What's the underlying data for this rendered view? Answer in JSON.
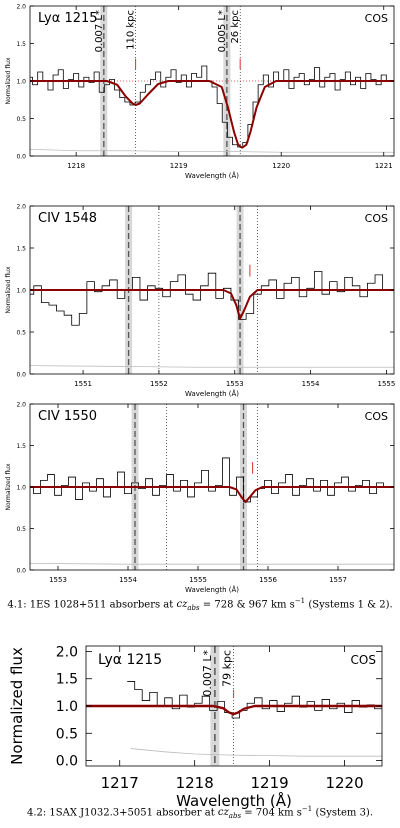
{
  "figure": {
    "caption_1": {
      "prefix": "4.1: 1ES 1028+511 absorbers at",
      "value": "= 728 & 967 km s",
      "suffix": "(Systems 1 & 2)."
    },
    "caption_2": {
      "prefix": "4.2: 1SAX J1032.3+5051 absorber at",
      "value": "= 704 km s",
      "suffix": "(System 3)."
    }
  },
  "chart_data": [
    {
      "type": "line",
      "title": "Lyα 1215",
      "instrument": "COS",
      "xlabel": "Wavelength (Å)",
      "ylabel": "Normalized flux",
      "xlim": [
        1217.55,
        1221.1
      ],
      "ylim": [
        0.0,
        2.0
      ],
      "xticks": [
        "1218",
        "1219",
        "1220",
        "1221"
      ],
      "xtickvals": [
        1218,
        1219,
        1220,
        1221
      ],
      "yticks": [
        "0.0",
        "0.5",
        "1.0",
        "1.5",
        "2.0"
      ],
      "ytickvals": [
        0.0,
        0.5,
        1.0,
        1.5,
        2.0
      ],
      "colors": {
        "model": "#8b0000",
        "data": "#000000",
        "error": "#bbbbbb",
        "band": "#d8d8d8",
        "tick": "#dd3333"
      },
      "markers": [
        {
          "x": 1218.27,
          "label": "0.007 L*"
        },
        {
          "x": 1219.47,
          "label": "0.005 L*"
        }
      ],
      "dotted_lines": [
        1218.58,
        1219.6
      ],
      "marker_labels": [
        "110 kpc",
        "26 kpc"
      ],
      "red_ticks": [
        1218.58,
        1219.6
      ],
      "continuum_dotted": true,
      "series": [
        {
          "role": "data",
          "x": [
            1217.55,
            1217.6,
            1217.65,
            1217.7,
            1217.75,
            1217.8,
            1217.85,
            1217.9,
            1217.95,
            1218.0,
            1218.05,
            1218.1,
            1218.15,
            1218.2,
            1218.25,
            1218.3,
            1218.35,
            1218.4,
            1218.45,
            1218.5,
            1218.55,
            1218.6,
            1218.65,
            1218.7,
            1218.75,
            1218.8,
            1218.85,
            1218.9,
            1218.95,
            1219.0,
            1219.05,
            1219.1,
            1219.15,
            1219.2,
            1219.25,
            1219.3,
            1219.35,
            1219.4,
            1219.45,
            1219.5,
            1219.55,
            1219.6,
            1219.65,
            1219.7,
            1219.75,
            1219.8,
            1219.85,
            1219.9,
            1219.95,
            1220.0,
            1220.05,
            1220.1,
            1220.15,
            1220.2,
            1220.25,
            1220.3,
            1220.35,
            1220.4,
            1220.45,
            1220.5,
            1220.55,
            1220.6,
            1220.65,
            1220.7,
            1220.75,
            1220.8,
            1220.85,
            1220.9,
            1220.95,
            1221.0,
            1221.05
          ],
          "y": [
            1.05,
            0.95,
            1.12,
            1.0,
            0.88,
            1.08,
            1.15,
            0.9,
            1.02,
            1.1,
            0.92,
            1.05,
            0.98,
            1.12,
            0.85,
            0.95,
            1.02,
            0.88,
            0.78,
            0.72,
            0.68,
            0.72,
            0.85,
            0.95,
            1.02,
            1.12,
            0.92,
            1.05,
            1.15,
            0.98,
            1.08,
            0.92,
            1.1,
            1.05,
            1.2,
            1.0,
            0.92,
            0.7,
            0.45,
            0.25,
            0.15,
            0.12,
            0.18,
            0.42,
            0.72,
            0.95,
            1.08,
            0.92,
            1.12,
            1.0,
            1.15,
            0.9,
            1.05,
            1.1,
            0.95,
            1.02,
            1.18,
            0.92,
            1.05,
            1.1,
            0.88,
            1.02,
            1.12,
            0.95,
            1.05,
            0.9,
            1.1,
            1.02,
            0.95,
            1.08,
            1.0
          ]
        },
        {
          "role": "model",
          "x": [
            1217.55,
            1218.3,
            1218.4,
            1218.48,
            1218.55,
            1218.58,
            1218.62,
            1218.7,
            1218.8,
            1218.9,
            1219.3,
            1219.42,
            1219.48,
            1219.54,
            1219.58,
            1219.62,
            1219.66,
            1219.7,
            1219.76,
            1219.84,
            1219.95,
            1221.1
          ],
          "y": [
            1.0,
            1.0,
            0.95,
            0.8,
            0.7,
            0.68,
            0.7,
            0.82,
            0.96,
            1.0,
            1.0,
            0.92,
            0.65,
            0.32,
            0.15,
            0.11,
            0.15,
            0.32,
            0.65,
            0.92,
            1.0,
            1.0
          ]
        },
        {
          "role": "error",
          "x": [
            1217.55,
            1218.0,
            1218.5,
            1219.0,
            1219.5,
            1220.0,
            1220.5,
            1221.1
          ],
          "y": [
            0.09,
            0.07,
            0.07,
            0.06,
            0.06,
            0.05,
            0.05,
            0.05
          ]
        }
      ]
    },
    {
      "type": "line",
      "title": "CIV 1548",
      "instrument": "COS",
      "xlabel": "Wavelength (Å)",
      "ylabel": "Normalized flux",
      "xlim": [
        1550.3,
        1555.1
      ],
      "ylim": [
        0.0,
        2.0
      ],
      "xticks": [
        "1551",
        "1552",
        "1553",
        "1554",
        "1555"
      ],
      "xtickvals": [
        1551,
        1552,
        1553,
        1554,
        1555
      ],
      "yticks": [
        "0.0",
        "0.5",
        "1.0",
        "1.5",
        "2.0"
      ],
      "ytickvals": [
        0.0,
        0.5,
        1.0,
        1.5,
        2.0
      ],
      "colors": {
        "model": "#8b0000",
        "data": "#000000",
        "error": "#bbbbbb",
        "band": "#d8d8d8",
        "tick": "#dd3333"
      },
      "markers": [
        {
          "x": 1551.6,
          "label": ""
        },
        {
          "x": 1553.07,
          "label": ""
        }
      ],
      "dotted_lines": [
        1552.0,
        1553.3
      ],
      "marker_labels": [],
      "red_ticks": [
        1553.2
      ],
      "continuum_dotted": false,
      "series": [
        {
          "role": "data",
          "x": [
            1550.3,
            1550.4,
            1550.5,
            1550.6,
            1550.7,
            1550.8,
            1550.9,
            1551.0,
            1551.1,
            1551.2,
            1551.3,
            1551.4,
            1551.5,
            1551.6,
            1551.7,
            1551.8,
            1551.9,
            1552.0,
            1552.1,
            1552.2,
            1552.3,
            1552.4,
            1552.5,
            1552.6,
            1552.7,
            1552.8,
            1552.9,
            1553.0,
            1553.1,
            1553.2,
            1553.3,
            1553.4,
            1553.5,
            1553.6,
            1553.7,
            1553.8,
            1553.9,
            1554.0,
            1554.1,
            1554.2,
            1554.3,
            1554.4,
            1554.5,
            1554.6,
            1554.7,
            1554.8,
            1554.9,
            1555.0
          ],
          "y": [
            0.95,
            1.05,
            0.85,
            0.82,
            0.75,
            0.7,
            0.58,
            0.72,
            1.1,
            0.98,
            1.05,
            1.12,
            0.9,
            1.0,
            1.15,
            0.88,
            1.05,
            1.02,
            0.92,
            1.1,
            1.18,
            0.95,
            0.88,
            1.05,
            1.2,
            0.9,
            1.02,
            0.88,
            0.65,
            0.72,
            0.95,
            1.05,
            1.12,
            0.9,
            1.08,
            1.15,
            0.92,
            1.02,
            1.22,
            0.95,
            1.1,
            0.98,
            1.15,
            1.05,
            0.92,
            1.08,
            1.18,
            1.0
          ]
        },
        {
          "role": "model",
          "x": [
            1550.3,
            1552.85,
            1552.95,
            1553.02,
            1553.07,
            1553.12,
            1553.2,
            1553.3,
            1555.1
          ],
          "y": [
            1.0,
            1.0,
            0.96,
            0.82,
            0.66,
            0.75,
            0.92,
            1.0,
            1.0
          ]
        },
        {
          "role": "error",
          "x": [
            1550.3,
            1551.5,
            1552.5,
            1553.5,
            1554.5,
            1555.1
          ],
          "y": [
            0.1,
            0.09,
            0.08,
            0.08,
            0.08,
            0.08
          ]
        }
      ]
    },
    {
      "type": "line",
      "title": "CIV 1550",
      "instrument": "COS",
      "xlabel": "Wavelength (Å)",
      "ylabel": "Normalized flux",
      "xlim": [
        1552.6,
        1557.8
      ],
      "ylim": [
        0.0,
        2.0
      ],
      "xticks": [
        "1553",
        "1554",
        "1555",
        "1556",
        "1557"
      ],
      "xtickvals": [
        1553,
        1554,
        1555,
        1556,
        1557
      ],
      "yticks": [
        "0.0",
        "0.5",
        "1.0",
        "1.5",
        "2.0"
      ],
      "ytickvals": [
        0.0,
        0.5,
        1.0,
        1.5,
        2.0
      ],
      "colors": {
        "model": "#8b0000",
        "data": "#000000",
        "error": "#bbbbbb",
        "band": "#d8d8d8",
        "tick": "#dd3333"
      },
      "markers": [
        {
          "x": 1554.1,
          "label": ""
        },
        {
          "x": 1555.65,
          "label": ""
        }
      ],
      "dotted_lines": [
        1554.55,
        1555.85
      ],
      "marker_labels": [],
      "red_ticks": [
        1555.78
      ],
      "continuum_dotted": false,
      "series": [
        {
          "role": "data",
          "x": [
            1552.6,
            1552.7,
            1552.8,
            1552.9,
            1553.0,
            1553.1,
            1553.2,
            1553.3,
            1553.4,
            1553.5,
            1553.6,
            1553.7,
            1553.8,
            1553.9,
            1554.0,
            1554.1,
            1554.2,
            1554.3,
            1554.4,
            1554.5,
            1554.6,
            1554.7,
            1554.8,
            1554.9,
            1555.0,
            1555.1,
            1555.2,
            1555.3,
            1555.4,
            1555.5,
            1555.6,
            1555.7,
            1555.8,
            1555.9,
            1556.0,
            1556.1,
            1556.2,
            1556.3,
            1556.4,
            1556.5,
            1556.6,
            1556.7,
            1556.8,
            1556.9,
            1557.0,
            1557.1,
            1557.2,
            1557.3,
            1557.4,
            1557.5,
            1557.6,
            1557.7
          ],
          "y": [
            1.0,
            0.92,
            1.08,
            1.15,
            0.9,
            1.02,
            1.12,
            0.85,
            1.05,
            0.95,
            1.1,
            0.88,
            1.0,
            1.18,
            0.92,
            1.05,
            0.98,
            1.1,
            0.9,
            1.02,
            1.15,
            0.95,
            1.08,
            0.88,
            1.05,
            1.2,
            0.95,
            1.02,
            1.35,
            0.9,
            1.12,
            0.82,
            0.88,
            0.98,
            1.08,
            0.92,
            1.05,
            1.15,
            0.9,
            1.02,
            1.1,
            0.95,
            1.08,
            0.9,
            1.05,
            1.12,
            0.95,
            1.02,
            1.08,
            0.92,
            1.05,
            1.0
          ]
        },
        {
          "role": "model",
          "x": [
            1552.6,
            1555.45,
            1555.55,
            1555.62,
            1555.68,
            1555.74,
            1555.82,
            1555.92,
            1557.8
          ],
          "y": [
            1.0,
            1.0,
            0.97,
            0.88,
            0.82,
            0.88,
            0.96,
            1.0,
            1.0
          ]
        },
        {
          "role": "error",
          "x": [
            1552.6,
            1554.0,
            1555.0,
            1556.0,
            1557.0,
            1557.8
          ],
          "y": [
            0.08,
            0.07,
            0.07,
            0.07,
            0.07,
            0.07
          ]
        }
      ]
    },
    {
      "type": "line",
      "title": "Lyα 1215",
      "instrument": "COS",
      "xlabel": "Wavelength (Å)",
      "ylabel": "Normalized flux",
      "xlim": [
        1216.55,
        1220.5
      ],
      "ylim": [
        -0.1,
        2.1
      ],
      "xticks": [
        "1217",
        "1218",
        "1219",
        "1220"
      ],
      "xtickvals": [
        1217,
        1218,
        1219,
        1220
      ],
      "yticks": [
        "0.0",
        "0.5",
        "1.0",
        "1.5",
        "2.0"
      ],
      "ytickvals": [
        0.0,
        0.5,
        1.0,
        1.5,
        2.0
      ],
      "colors": {
        "model": "#8b0000",
        "data": "#000000",
        "error": "#bbbbbb",
        "band": "#d8d8d8",
        "tick": "#dd3333"
      },
      "markers": [
        {
          "x": 1218.27,
          "label": "0.007 L*"
        }
      ],
      "dotted_lines": [
        1218.52
      ],
      "marker_labels": [
        "79 kpc"
      ],
      "red_ticks": [
        1218.52
      ],
      "continuum_dotted": false,
      "series": [
        {
          "role": "data",
          "x": [
            1217.15,
            1217.25,
            1217.35,
            1217.45,
            1217.55,
            1217.65,
            1217.75,
            1217.85,
            1217.95,
            1218.05,
            1218.15,
            1218.25,
            1218.35,
            1218.45,
            1218.55,
            1218.65,
            1218.75,
            1218.85,
            1218.95,
            1219.05,
            1219.15,
            1219.25,
            1219.35,
            1219.45,
            1219.55,
            1219.65,
            1219.75,
            1219.85,
            1219.95,
            1220.05,
            1220.15,
            1220.25,
            1220.35,
            1220.45
          ],
          "y": [
            1.45,
            1.3,
            1.1,
            1.25,
            1.0,
            1.15,
            0.95,
            1.2,
            0.98,
            1.05,
            1.18,
            0.92,
            1.08,
            0.88,
            0.78,
            0.92,
            1.05,
            1.15,
            0.95,
            1.1,
            0.9,
            1.05,
            1.18,
            0.98,
            1.08,
            0.92,
            1.12,
            0.95,
            1.05,
            0.88,
            1.1,
            0.98,
            1.02,
            0.95
          ]
        },
        {
          "role": "model",
          "x": [
            1216.55,
            1218.25,
            1218.38,
            1218.46,
            1218.52,
            1218.58,
            1218.66,
            1218.8,
            1220.5
          ],
          "y": [
            1.0,
            1.0,
            0.96,
            0.88,
            0.85,
            0.88,
            0.95,
            1.0,
            1.0
          ]
        },
        {
          "role": "error",
          "x": [
            1217.15,
            1217.6,
            1218.0,
            1218.5,
            1219.0,
            1219.5,
            1220.0,
            1220.5
          ],
          "y": [
            0.22,
            0.16,
            0.12,
            0.1,
            0.09,
            0.08,
            0.08,
            0.08
          ]
        }
      ]
    }
  ]
}
